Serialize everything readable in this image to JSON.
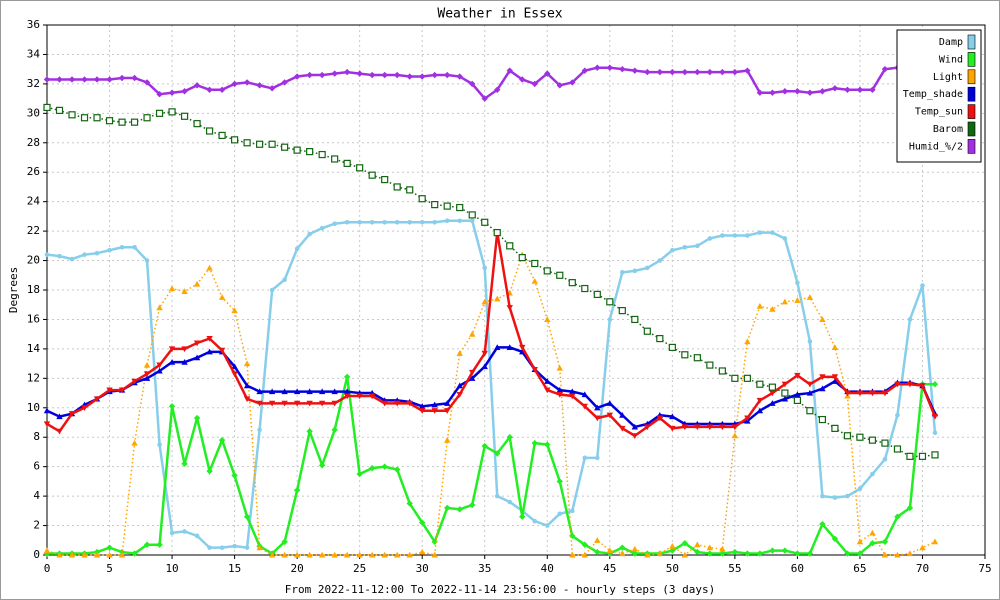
{
  "chart_data": {
    "type": "line",
    "title": "Weather in Essex",
    "ylabel": "Degrees",
    "xlabel": "From 2022-11-12:00 To 2022-11-14 23:56:00 - hourly steps (3 days)",
    "x": [
      0,
      1,
      2,
      3,
      4,
      5,
      6,
      7,
      8,
      9,
      10,
      11,
      12,
      13,
      14,
      15,
      16,
      17,
      18,
      19,
      20,
      21,
      22,
      23,
      24,
      25,
      26,
      27,
      28,
      29,
      30,
      31,
      32,
      33,
      34,
      35,
      36,
      37,
      38,
      39,
      40,
      41,
      42,
      43,
      44,
      45,
      46,
      47,
      48,
      49,
      50,
      51,
      52,
      53,
      54,
      55,
      56,
      57,
      58,
      59,
      60,
      61,
      62,
      63,
      64,
      65,
      66,
      67,
      68,
      69,
      70,
      71
    ],
    "xlim": [
      0,
      75
    ],
    "xticks": [
      0,
      5,
      10,
      15,
      20,
      25,
      30,
      35,
      40,
      45,
      50,
      55,
      60,
      65,
      70,
      75
    ],
    "ylim": [
      0,
      36
    ],
    "yticks": [
      0,
      2,
      4,
      6,
      8,
      10,
      12,
      14,
      16,
      18,
      20,
      22,
      24,
      26,
      28,
      30,
      32,
      34,
      36
    ],
    "grid": true,
    "legend": "upper right",
    "series": [
      {
        "name": "Damp",
        "color": "#87ceeb",
        "marker": "circle",
        "style": "solid",
        "values": [
          20.4,
          20.3,
          20.1,
          20.4,
          20.5,
          20.7,
          20.9,
          20.9,
          20,
          7.5,
          1.5,
          1.6,
          1.3,
          0.5,
          0.5,
          0.6,
          0.5,
          8.5,
          18,
          18.7,
          20.8,
          21.8,
          22.2,
          22.5,
          22.6,
          22.6,
          22.6,
          22.6,
          22.6,
          22.6,
          22.6,
          22.6,
          22.7,
          22.7,
          22.7,
          19.5,
          4,
          3.6,
          3,
          2.3,
          2,
          2.8,
          3,
          6.6,
          6.6,
          16,
          19.2,
          19.3,
          19.5,
          20,
          20.7,
          20.9,
          21,
          21.5,
          21.7,
          21.7,
          21.7,
          21.9,
          21.9,
          21.5,
          18.5,
          14.5,
          4,
          3.9,
          4,
          4.5,
          5.5,
          6.5,
          9.5,
          16,
          18.3,
          8.3
        ]
      },
      {
        "name": "Wind",
        "color": "#22ee22",
        "marker": "diamond",
        "style": "solid",
        "values": [
          0.1,
          0.1,
          0.1,
          0.1,
          0.2,
          0.5,
          0.2,
          0.1,
          0.7,
          0.7,
          10.1,
          6.2,
          9.3,
          5.7,
          7.8,
          5.4,
          2.6,
          0.6,
          0.1,
          0.9,
          4.4,
          8.4,
          6.1,
          8.5,
          12.1,
          5.5,
          5.9,
          6,
          5.8,
          3.5,
          2.2,
          0.9,
          3.2,
          3.1,
          3.4,
          7.4,
          6.9,
          8,
          2.6,
          7.6,
          7.5,
          5,
          1.3,
          0.7,
          0.2,
          0.1,
          0.5,
          0.1,
          0.1,
          0.1,
          0.3,
          0.8,
          0.2,
          0.1,
          0.1,
          0.2,
          0.1,
          0.1,
          0.3,
          0.3,
          0.1,
          0.1,
          2.1,
          1.1,
          0.1,
          0.1,
          0.8,
          0.9,
          2.6,
          3.2,
          11.6,
          11.6
        ]
      },
      {
        "name": "Light",
        "color": "#ffa500",
        "marker": "triangle",
        "style": "dotted",
        "values": [
          0.3,
          0,
          0,
          0,
          0,
          0,
          0,
          7.6,
          12.9,
          16.8,
          18.1,
          17.9,
          18.4,
          19.5,
          17.5,
          16.6,
          13,
          0.5,
          0,
          0,
          0,
          0,
          0,
          0,
          0,
          0,
          0,
          0,
          0,
          0,
          0.2,
          0,
          7.8,
          13.7,
          15,
          17.2,
          17.4,
          17.8,
          20.4,
          18.6,
          16,
          12.7,
          0,
          0,
          1,
          0.3,
          0.1,
          0.4,
          0,
          0.1,
          0.6,
          0,
          0.7,
          0.5,
          0.4,
          8.1,
          14.5,
          16.9,
          16.7,
          17.2,
          17.3,
          17.5,
          16,
          14.1,
          10.8,
          0.9,
          1.5,
          0,
          0,
          0.1,
          0.5,
          0.9
        ]
      },
      {
        "name": "Temp_shade",
        "color": "#0000dd",
        "marker": "triangle",
        "style": "solid",
        "values": [
          9.8,
          9.4,
          9.6,
          10.2,
          10.6,
          11.1,
          11.2,
          11.7,
          12,
          12.5,
          13.1,
          13.1,
          13.4,
          13.8,
          13.8,
          12.8,
          11.5,
          11.1,
          11.1,
          11.1,
          11.1,
          11.1,
          11.1,
          11.1,
          11.1,
          11,
          11,
          10.5,
          10.5,
          10.4,
          10.1,
          10.2,
          10.3,
          11.5,
          12,
          12.8,
          14.1,
          14.1,
          13.8,
          12.6,
          11.8,
          11.2,
          11.1,
          10.9,
          10,
          10.3,
          9.5,
          8.7,
          8.9,
          9.5,
          9.4,
          8.9,
          8.9,
          8.9,
          8.9,
          8.9,
          9.1,
          9.8,
          10.3,
          10.6,
          10.9,
          11,
          11.3,
          11.8,
          11.1,
          11.1,
          11.1,
          11.1,
          11.7,
          11.7,
          11.5,
          9.6
        ]
      },
      {
        "name": "Temp_sun",
        "color": "#ee1111",
        "marker": "tridown",
        "style": "solid",
        "values": [
          8.9,
          8.4,
          9.6,
          10,
          10.6,
          11.2,
          11.2,
          11.8,
          12.3,
          12.9,
          14,
          14,
          14.4,
          14.7,
          13.9,
          12.3,
          10.6,
          10.3,
          10.3,
          10.3,
          10.3,
          10.3,
          10.3,
          10.3,
          10.8,
          10.8,
          10.8,
          10.3,
          10.3,
          10.3,
          9.8,
          9.8,
          9.8,
          10.9,
          12.4,
          13.7,
          21.9,
          16.8,
          14.1,
          12.6,
          11.2,
          10.9,
          10.8,
          10.1,
          9.3,
          9.5,
          8.6,
          8.1,
          8.7,
          9.3,
          8.6,
          8.7,
          8.7,
          8.7,
          8.7,
          8.7,
          9.3,
          10.5,
          11,
          11.6,
          12.2,
          11.6,
          12.1,
          12.1,
          11,
          11,
          11,
          11,
          11.6,
          11.6,
          11.5,
          9.4
        ]
      },
      {
        "name": "Barom",
        "color": "#116611",
        "marker": "square",
        "style": "dotted",
        "values": [
          30.4,
          30.2,
          29.9,
          29.7,
          29.7,
          29.5,
          29.4,
          29.4,
          29.7,
          30,
          30.1,
          29.8,
          29.3,
          28.8,
          28.5,
          28.2,
          28,
          27.9,
          27.9,
          27.7,
          27.5,
          27.4,
          27.2,
          26.9,
          26.6,
          26.3,
          25.8,
          25.5,
          25,
          24.8,
          24.2,
          23.8,
          23.7,
          23.6,
          23.1,
          22.6,
          21.9,
          21,
          20.2,
          19.8,
          19.3,
          19,
          18.5,
          18.1,
          17.7,
          17.2,
          16.6,
          16,
          15.2,
          14.7,
          14.1,
          13.6,
          13.4,
          12.9,
          12.5,
          12,
          12,
          11.6,
          11.4,
          11,
          10.5,
          9.8,
          9.2,
          8.6,
          8.1,
          8,
          7.8,
          7.6,
          7.2,
          6.7,
          6.7,
          6.8
        ]
      },
      {
        "name": "Humid_%/2",
        "color": "#a030e0",
        "marker": "diamond",
        "style": "solid",
        "values": [
          32.3,
          32.3,
          32.3,
          32.3,
          32.3,
          32.3,
          32.4,
          32.4,
          32.1,
          31.3,
          31.4,
          31.5,
          31.9,
          31.6,
          31.6,
          32,
          32.1,
          31.9,
          31.7,
          32.1,
          32.5,
          32.6,
          32.6,
          32.7,
          32.8,
          32.7,
          32.6,
          32.6,
          32.6,
          32.5,
          32.5,
          32.6,
          32.6,
          32.5,
          32,
          31,
          31.6,
          32.9,
          32.3,
          32,
          32.7,
          31.9,
          32.1,
          32.9,
          33.1,
          33.1,
          33,
          32.9,
          32.8,
          32.8,
          32.8,
          32.8,
          32.8,
          32.8,
          32.8,
          32.8,
          32.9,
          31.4,
          31.4,
          31.5,
          31.5,
          31.4,
          31.5,
          31.7,
          31.6,
          31.6,
          31.6,
          33,
          33.1,
          33.2,
          33.3,
          33.2
        ]
      }
    ]
  }
}
